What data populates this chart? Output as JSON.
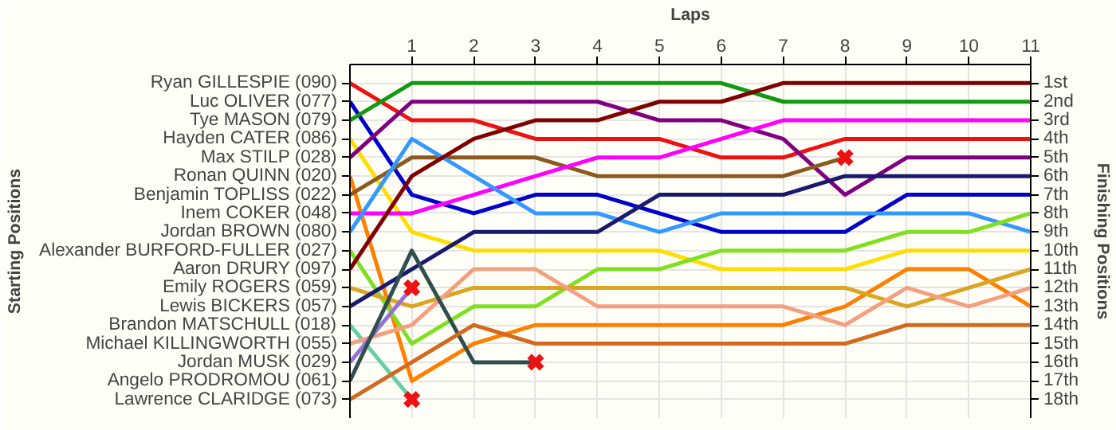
{
  "chart_data": {
    "type": "line",
    "xlabel": "Laps",
    "ylabel": "Finishing Positions",
    "x": [
      0,
      1,
      2,
      3,
      4,
      5,
      6,
      7,
      8,
      9,
      10,
      11
    ],
    "xlim": [
      0,
      11
    ],
    "xticks": [
      1,
      2,
      3,
      4,
      5,
      6,
      7,
      8,
      9,
      10,
      11
    ],
    "ylim": [
      19,
      0
    ],
    "yticks": [
      {
        "value": 1,
        "label": "1st"
      },
      {
        "value": 2,
        "label": "2nd"
      },
      {
        "value": 3,
        "label": "3rd"
      },
      {
        "value": 4,
        "label": "4th"
      },
      {
        "value": 5,
        "label": "5th"
      },
      {
        "value": 6,
        "label": "6th"
      },
      {
        "value": 7,
        "label": "7th"
      },
      {
        "value": 8,
        "label": "8th"
      },
      {
        "value": 9,
        "label": "9th"
      },
      {
        "value": 10,
        "label": "10th"
      },
      {
        "value": 11,
        "label": "11th"
      },
      {
        "value": 12,
        "label": "12th"
      },
      {
        "value": 13,
        "label": "13th"
      },
      {
        "value": 14,
        "label": "14th"
      },
      {
        "value": 15,
        "label": "15th"
      },
      {
        "value": 16,
        "label": "16th"
      },
      {
        "value": 17,
        "label": "17th"
      },
      {
        "value": 18,
        "label": "18th"
      }
    ],
    "annotations": [
      "Starting Positions"
    ],
    "grid": true,
    "series": [
      {
        "name": "Ryan GILLESPIE (090)",
        "color": "#ee1111",
        "values": [
          1,
          3,
          3,
          4,
          4,
          4,
          5,
          5,
          4,
          4,
          4,
          4
        ]
      },
      {
        "name": "Luc OLIVER (077)",
        "color": "#0000cc",
        "values": [
          2,
          7,
          8,
          7,
          7,
          8,
          9,
          9,
          9,
          7,
          7,
          7
        ]
      },
      {
        "name": "Tye MASON (079)",
        "color": "#119911",
        "values": [
          3,
          1,
          1,
          1,
          1,
          1,
          1,
          2,
          2,
          2,
          2,
          2
        ]
      },
      {
        "name": "Hayden CATER (086)",
        "color": "#ffdd00",
        "values": [
          4,
          9,
          10,
          10,
          10,
          10,
          11,
          11,
          11,
          10,
          10,
          10
        ]
      },
      {
        "name": "Max STILP (028)",
        "color": "#800080",
        "values": [
          5,
          2,
          2,
          2,
          2,
          3,
          3,
          4,
          7,
          5,
          5,
          5
        ]
      },
      {
        "name": "Ronan QUINN (020)",
        "color": "#ff7f00",
        "values": [
          6,
          17,
          15,
          14,
          14,
          14,
          14,
          14,
          13,
          11,
          11,
          13
        ]
      },
      {
        "name": "Benjamin TOPLISS (022)",
        "color": "#8b5a1e",
        "values": [
          7,
          5,
          5,
          5,
          6,
          6,
          6,
          6,
          5,
          null,
          null,
          null
        ]
      },
      {
        "name": "Inem COKER (048)",
        "color": "#ff00ff",
        "values": [
          8,
          8,
          7,
          6,
          5,
          5,
          4,
          3,
          3,
          3,
          3,
          3
        ]
      },
      {
        "name": "Jordan BROWN (080)",
        "color": "#3399ff",
        "values": [
          9,
          4,
          6,
          8,
          8,
          9,
          8,
          8,
          8,
          8,
          8,
          9
        ]
      },
      {
        "name": "Alexander BURFORD-FULLER (027)",
        "color": "#80e020",
        "values": [
          10,
          15,
          13,
          13,
          11,
          11,
          10,
          10,
          10,
          9,
          9,
          8
        ]
      },
      {
        "name": "Aaron DRURY (097)",
        "color": "#800000",
        "values": [
          11,
          6,
          4,
          3,
          3,
          2,
          2,
          1,
          1,
          1,
          1,
          1
        ]
      },
      {
        "name": "Emily ROGERS (059)",
        "color": "#daa520",
        "values": [
          12,
          13,
          12,
          12,
          12,
          12,
          12,
          12,
          12,
          13,
          12,
          11
        ]
      },
      {
        "name": "Lewis BICKERS (057)",
        "color": "#191970",
        "values": [
          13,
          11,
          9,
          9,
          9,
          7,
          7,
          7,
          6,
          6,
          6,
          6
        ]
      },
      {
        "name": "Brandon MATSCHULL (018)",
        "color": "#66cdaa",
        "values": [
          14,
          18,
          null,
          null,
          null,
          null,
          null,
          null,
          null,
          null,
          null,
          null
        ]
      },
      {
        "name": "Michael KILLINGWORTH (055)",
        "color": "#f4a080",
        "values": [
          15,
          14,
          11,
          11,
          13,
          13,
          13,
          13,
          14,
          12,
          13,
          12
        ]
      },
      {
        "name": "Jordan MUSK (029)",
        "color": "#9370db",
        "values": [
          16,
          12,
          null,
          null,
          null,
          null,
          null,
          null,
          null,
          null,
          null,
          null
        ]
      },
      {
        "name": "Angelo PRODROMOU (061)",
        "color": "#2f4f4f",
        "values": [
          17,
          10,
          16,
          16,
          null,
          null,
          null,
          null,
          null,
          null,
          null,
          null
        ]
      },
      {
        "name": "Lawrence CLARIDGE (073)",
        "color": "#d2691e",
        "values": [
          18,
          16,
          14,
          15,
          15,
          15,
          15,
          15,
          15,
          14,
          14,
          14
        ]
      },
      {
        "type": "scatter",
        "marker": "cross",
        "color": "#ee1111",
        "x": [
          1,
          1,
          3,
          8
        ],
        "values": [
          18,
          12,
          16,
          5
        ]
      }
    ]
  }
}
